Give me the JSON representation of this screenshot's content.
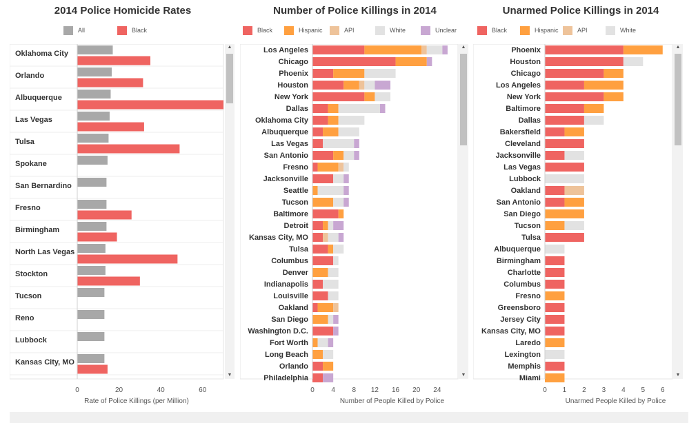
{
  "colors": {
    "all": "#a8a8a8",
    "black": "#ef6461",
    "hispanic": "#ffa040",
    "api": "#eec39a",
    "white": "#e2e2e2",
    "unclear": "#c8a7d2"
  },
  "panels": {
    "rates": {
      "title": "2014 Police Homicide Rates",
      "legend": [
        {
          "label": "All",
          "color": "#a8a8a8"
        },
        {
          "label": "Black",
          "color": "#ef6461"
        }
      ],
      "scroll_up_icon": "▲",
      "scroll_down_icon": "▼"
    },
    "killings": {
      "title": "Number of Police Killings in 2014",
      "legend": [
        {
          "label": "Black",
          "color": "#ef6461"
        },
        {
          "label": "Hispanic",
          "color": "#ffa040"
        },
        {
          "label": "API",
          "color": "#eec39a"
        },
        {
          "label": "White",
          "color": "#e2e2e2"
        },
        {
          "label": "Unclear",
          "color": "#c8a7d2"
        }
      ],
      "scroll_up_icon": "▲",
      "scroll_down_icon": "▼"
    },
    "unarmed": {
      "title": "Unarmed Police Killings in 2014",
      "legend": [
        {
          "label": "Black",
          "color": "#ef6461"
        },
        {
          "label": "Hispanic",
          "color": "#ffa040"
        },
        {
          "label": "API",
          "color": "#eec39a"
        },
        {
          "label": "White",
          "color": "#e2e2e2"
        }
      ],
      "scroll_up_icon": "▲",
      "scroll_down_icon": "▼"
    }
  },
  "chart_data": [
    {
      "type": "bar",
      "orientation": "horizontal",
      "title": "2014 Police Homicide Rates",
      "xlabel": "Rate of Police Killings (per Million)",
      "xlim": [
        0,
        70
      ],
      "xticks": [
        0,
        20,
        40,
        60
      ],
      "grid": false,
      "legend_position": "top",
      "categories": [
        "Oklahoma City",
        "Orlando",
        "Albuquerque",
        "Las Vegas",
        "Tulsa",
        "Spokane",
        "San Bernardino",
        "Fresno",
        "Birmingham",
        "North Las Vegas",
        "Stockton",
        "Tucson",
        "Reno",
        "Lubbock",
        "Kansas City, MO"
      ],
      "series": [
        {
          "name": "All",
          "values": [
            17,
            16.5,
            16,
            15.5,
            15,
            14.5,
            14,
            14,
            14,
            13.5,
            13.5,
            13,
            13,
            13,
            13
          ]
        },
        {
          "name": "Black",
          "values": [
            35,
            31.5,
            70,
            32,
            49,
            null,
            null,
            26,
            19,
            48,
            30,
            null,
            null,
            null,
            14.5
          ]
        }
      ]
    },
    {
      "type": "bar",
      "orientation": "horizontal",
      "stacked": true,
      "title": "Number of Police Killings in 2014",
      "xlabel": "Number of People Killed by Police",
      "xlim": [
        0,
        28
      ],
      "xticks": [
        0,
        4,
        8,
        12,
        16,
        20,
        24
      ],
      "grid": false,
      "legend_position": "top",
      "categories": [
        "Los Angeles",
        "Chicago",
        "Phoenix",
        "Houston",
        "New York",
        "Dallas",
        "Oklahoma City",
        "Albuquerque",
        "Las Vegas",
        "San Antonio",
        "Fresno",
        "Jacksonville",
        "Seattle",
        "Tucson",
        "Baltimore",
        "Detroit",
        "Kansas City, MO",
        "Tulsa",
        "Columbus",
        "Denver",
        "Indianapolis",
        "Louisville",
        "Oakland",
        "San Diego",
        "Washington D.C.",
        "Fort Worth",
        "Long Beach",
        "Orlando",
        "Philadelphia"
      ],
      "series": [
        {
          "name": "Black",
          "values": [
            10,
            16,
            4,
            6,
            10,
            3,
            3,
            2,
            2,
            4,
            1,
            4,
            0,
            0,
            5,
            2,
            2,
            3,
            4,
            0,
            2,
            3,
            1,
            0,
            4,
            0,
            0,
            2,
            2
          ]
        },
        {
          "name": "Hispanic",
          "values": [
            11,
            6,
            6,
            3,
            2,
            2,
            2,
            3,
            0,
            2,
            4,
            0,
            1,
            4,
            1,
            1,
            0,
            1,
            0,
            3,
            0,
            0,
            3,
            3,
            0,
            1,
            2,
            2,
            0
          ]
        },
        {
          "name": "API",
          "values": [
            1,
            0,
            0,
            1,
            0,
            0,
            0,
            0,
            0,
            0,
            1,
            0,
            0,
            0,
            0,
            0,
            1,
            0,
            0,
            0,
            0,
            0,
            1,
            0,
            0,
            0,
            0,
            0,
            0
          ]
        },
        {
          "name": "White",
          "values": [
            3,
            0,
            6,
            2,
            3,
            8,
            5,
            4,
            6,
            2,
            1,
            2,
            5,
            2,
            0,
            1,
            2,
            2,
            1,
            2,
            3,
            2,
            0,
            1,
            0,
            2,
            2,
            0,
            0
          ]
        },
        {
          "name": "Unclear",
          "values": [
            1,
            1,
            0,
            3,
            0,
            1,
            0,
            0,
            1,
            1,
            0,
            1,
            1,
            1,
            0,
            2,
            1,
            0,
            0,
            0,
            0,
            0,
            0,
            1,
            1,
            1,
            0,
            0,
            2
          ]
        }
      ]
    },
    {
      "type": "bar",
      "orientation": "horizontal",
      "stacked": true,
      "title": "Unarmed Police Killings in 2014",
      "xlabel": "Unarmed People Killed by Police",
      "xlim": [
        0,
        6.5
      ],
      "xticks": [
        0,
        1,
        2,
        3,
        4,
        5,
        6
      ],
      "grid": false,
      "legend_position": "top",
      "categories": [
        "Phoenix",
        "Houston",
        "Chicago",
        "Los Angeles",
        "New York",
        "Baltimore",
        "Dallas",
        "Bakersfield",
        "Cleveland",
        "Jacksonville",
        "Las Vegas",
        "Lubbock",
        "Oakland",
        "San Antonio",
        "San Diego",
        "Tucson",
        "Tulsa",
        "Albuquerque",
        "Birmingham",
        "Charlotte",
        "Columbus",
        "Fresno",
        "Greensboro",
        "Jersey City",
        "Kansas City, MO",
        "Laredo",
        "Lexington",
        "Memphis",
        "Miami"
      ],
      "series": [
        {
          "name": "Black",
          "values": [
            4,
            4,
            3,
            2,
            3,
            2,
            2,
            1,
            2,
            1,
            2,
            0,
            1,
            1,
            0,
            0,
            2,
            0,
            1,
            1,
            1,
            0,
            1,
            1,
            1,
            0,
            0,
            1,
            0
          ]
        },
        {
          "name": "Hispanic",
          "values": [
            2,
            0,
            1,
            2,
            1,
            1,
            0,
            1,
            0,
            0,
            0,
            0,
            0,
            1,
            2,
            1,
            0,
            0,
            0,
            0,
            0,
            1,
            0,
            0,
            0,
            1,
            0,
            0,
            1
          ]
        },
        {
          "name": "API",
          "values": [
            0,
            0,
            0,
            0,
            0,
            0,
            0,
            0,
            0,
            0,
            0,
            0,
            1,
            0,
            0,
            0,
            0,
            0,
            0,
            0,
            0,
            0,
            0,
            0,
            0,
            0,
            0,
            0,
            0
          ]
        },
        {
          "name": "White",
          "values": [
            0,
            1,
            0,
            0,
            0,
            0,
            1,
            0,
            0,
            1,
            0,
            2,
            0,
            0,
            0,
            1,
            0,
            1,
            0,
            0,
            0,
            0,
            0,
            0,
            0,
            0,
            1,
            0,
            0
          ]
        }
      ]
    }
  ]
}
